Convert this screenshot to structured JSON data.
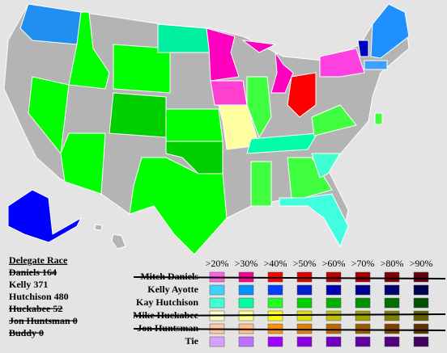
{
  "delegate_race": {
    "title": "Delegate Race",
    "entries": [
      {
        "text": "Daniels 164",
        "struck": true
      },
      {
        "text": "Kelly 371",
        "struck": false
      },
      {
        "text": "Hutchison 480",
        "struck": false
      },
      {
        "text": "Huckabee 52",
        "struck": true
      },
      {
        "text": "Jon Huntsman 0",
        "struck": true
      },
      {
        "text": "Buddy 0",
        "struck": true
      }
    ]
  },
  "legend": {
    "headers": [
      ">20%",
      ">30%",
      ">40%",
      ">50%",
      ">60%",
      ">70%",
      ">80%",
      ">90%"
    ],
    "rows": [
      {
        "name": "Mitch Daniels",
        "struck": true,
        "colors": [
          "#ff60e0",
          "#ff0090",
          "#ff0000",
          "#e00000",
          "#c00000",
          "#a00000",
          "#800000",
          "#600010"
        ]
      },
      {
        "name": "Kelly Ayotte",
        "struck": false,
        "colors": [
          "#40d0ff",
          "#0090ff",
          "#0040ff",
          "#0020d0",
          "#0000b0",
          "#000090",
          "#000070",
          "#000050"
        ]
      },
      {
        "name": "Kay Hutchison",
        "struck": false,
        "colors": [
          "#40ffd0",
          "#00ffa0",
          "#20ff20",
          "#00d000",
          "#00b000",
          "#009000",
          "#007000",
          "#005000"
        ]
      },
      {
        "name": "Mike Huckabee",
        "struck": true,
        "colors": [
          "#ffffc0",
          "#ffff80",
          "#ffff00",
          "#e0e000",
          "#c0c000",
          "#a0a000",
          "#808000",
          "#606000"
        ]
      },
      {
        "name": "Jon Huntsman",
        "struck": true,
        "colors": [
          "#ffc8a0",
          "#ffc080",
          "#ff9000",
          "#e08000",
          "#c06800",
          "#a05800",
          "#804000",
          "#603000"
        ]
      },
      {
        "name": "Tie",
        "struck": false,
        "colors": [
          "#d8a0ff",
          "#c070ff",
          "#a000ff",
          "#8800e0",
          "#7000c0",
          "#6000a0",
          "#500080",
          "#400060"
        ]
      }
    ]
  }
}
